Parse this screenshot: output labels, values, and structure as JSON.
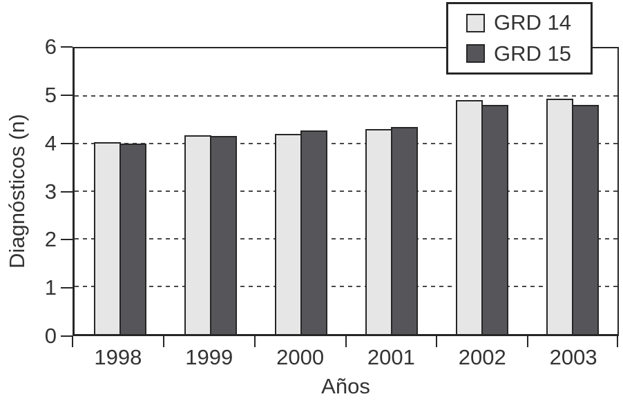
{
  "chart_data": {
    "type": "bar",
    "title": "",
    "categories": [
      "1998",
      "1999",
      "2000",
      "2001",
      "2002",
      "2003"
    ],
    "series": [
      {
        "name": "GRD 14",
        "color": "#e6e6e6",
        "values": [
          4.03,
          4.18,
          4.21,
          4.3,
          4.92,
          4.94
        ]
      },
      {
        "name": "GRD 15",
        "color": "#56565a",
        "values": [
          4.0,
          4.16,
          4.27,
          4.35,
          4.81,
          4.81
        ]
      }
    ],
    "xlabel": "Años",
    "ylabel": "Diagnósticos (n)",
    "ylim": [
      0,
      6
    ],
    "yticks": [
      0,
      1,
      2,
      3,
      4,
      5,
      6
    ],
    "grid": "horizontal-dashed",
    "legend_position": "top-right"
  },
  "legend": {
    "items": [
      {
        "label": "GRD 14",
        "color": "#e6e6e6"
      },
      {
        "label": "GRD 15",
        "color": "#56565a"
      }
    ]
  },
  "colors": {
    "background": "#ffffff",
    "frame": "#262626",
    "gridline": "#474747",
    "text": "#333333",
    "bar_light": "#e6e6e6",
    "bar_dark": "#56565a"
  }
}
